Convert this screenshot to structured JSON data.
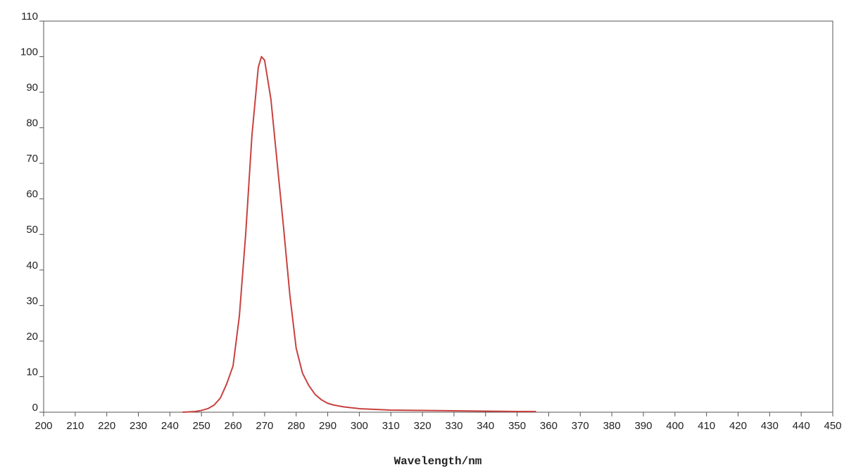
{
  "chart_data": {
    "type": "line",
    "x_label": "Wavelength/nm",
    "x": [
      244,
      248,
      250,
      252,
      254,
      256,
      258,
      260,
      262,
      264,
      266,
      268,
      269,
      270,
      272,
      274,
      276,
      278,
      280,
      282,
      284,
      286,
      288,
      290,
      292,
      295,
      300,
      305,
      310,
      320,
      330,
      340,
      350,
      356
    ],
    "series": [
      {
        "color": "#c8413f",
        "values": [
          0,
          0.2,
          0.5,
          1,
          2,
          4,
          8,
          13,
          27,
          50,
          78,
          97,
          100,
          99,
          88,
          70,
          52,
          33,
          18,
          11,
          7.5,
          5,
          3.5,
          2.5,
          2,
          1.5,
          1,
          0.8,
          0.6,
          0.5,
          0.4,
          0.3,
          0.2,
          0.2
        ]
      }
    ],
    "xlim": [
      200,
      450
    ],
    "xticks": [
      200,
      210,
      220,
      230,
      240,
      250,
      260,
      270,
      280,
      290,
      300,
      310,
      320,
      330,
      340,
      350,
      360,
      370,
      380,
      390,
      400,
      410,
      420,
      430,
      440,
      450
    ],
    "ylim": [
      0,
      110
    ],
    "yticks": [
      0,
      10,
      20,
      30,
      40,
      50,
      60,
      70,
      80,
      90,
      100,
      110
    ]
  }
}
